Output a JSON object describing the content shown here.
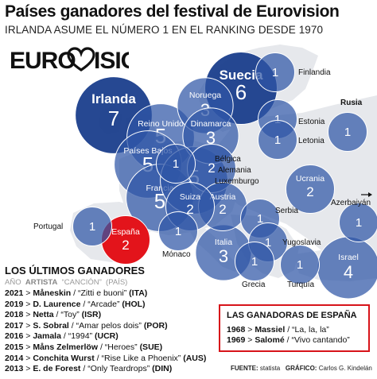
{
  "header": {
    "title": "Países ganadores del festival de Eurovision",
    "subtitle": "IRLANDA ASUME EL NÚMERO 1 EN EL RANKING DESDE 1970"
  },
  "logo": {
    "icon": "eurovision-logo-heart-icon",
    "text": "EUROVISION"
  },
  "chart_data": {
    "type": "bubble-map",
    "measure": "wins",
    "points": [
      {
        "country": "Irlanda",
        "wins": 7,
        "label_inside": true
      },
      {
        "country": "Suecia",
        "wins": 6,
        "label_inside": true
      },
      {
        "country": "Reino Unido",
        "wins": 5,
        "label_inside": true
      },
      {
        "country": "Países Bajos",
        "wins": 5,
        "label_inside": true
      },
      {
        "country": "Francia",
        "wins": 5,
        "label_inside": true
      },
      {
        "country": "Luxemburgo",
        "wins": 5,
        "label_inside": false
      },
      {
        "country": "Noruega",
        "wins": 3,
        "label_inside": true
      },
      {
        "country": "Dinamarca",
        "wins": 3,
        "label_inside": true
      },
      {
        "country": "Italia",
        "wins": 3,
        "label_inside": true
      },
      {
        "country": "Israel",
        "wins": 4,
        "label_inside": true
      },
      {
        "country": "Bélgica",
        "wins": 1,
        "label_inside": false
      },
      {
        "country": "Alemania",
        "wins": 2,
        "label_inside": false
      },
      {
        "country": "Austria",
        "wins": 2,
        "label_inside": true
      },
      {
        "country": "Suiza",
        "wins": 2,
        "label_inside": true
      },
      {
        "country": "Ucrania",
        "wins": 2,
        "label_inside": true
      },
      {
        "country": "España",
        "wins": 2,
        "label_inside": true,
        "highlight": true
      },
      {
        "country": "Finlandia",
        "wins": 1,
        "label_inside": false
      },
      {
        "country": "Rusia",
        "wins": 1,
        "label_inside": false
      },
      {
        "country": "Estonia",
        "wins": 1,
        "label_inside": false
      },
      {
        "country": "Letonia",
        "wins": 1,
        "label_inside": false
      },
      {
        "country": "Portugal",
        "wins": 1,
        "label_inside": false
      },
      {
        "country": "Mónaco",
        "wins": 1,
        "label_inside": false
      },
      {
        "country": "Serbia",
        "wins": 1,
        "label_inside": false
      },
      {
        "country": "Yugoslavia",
        "wins": 1,
        "label_inside": false
      },
      {
        "country": "Azerbaiyán",
        "wins": 1,
        "label_inside": false
      },
      {
        "country": "Grecia",
        "wins": 1,
        "label_inside": false
      },
      {
        "country": "Turquía",
        "wins": 1,
        "label_inside": false
      }
    ],
    "colors": {
      "bubble": "#2f56a6",
      "bubble_dark": "#1a3e8c",
      "highlight": "#e3141b",
      "land": "#e6e8ec",
      "sea": "#ffffff"
    }
  },
  "last_winners": {
    "title": "LOS ÚLTIMOS GANADORES",
    "columns": {
      "year": "AÑO",
      "artist": "ARTISTA",
      "song": "“CANCIÓN”",
      "country": "(PAÍS)"
    },
    "rows": [
      {
        "year": "2021",
        "artist": "Måneskin",
        "song": "“Zitti e buoni”",
        "country": "(ITA)"
      },
      {
        "year": "2019",
        "artist": "D. Laurence",
        "song": "“Arcade”",
        "country": "(HOL)"
      },
      {
        "year": "2018",
        "artist": "Netta",
        "song": "“Toy”",
        "country": "(ISR)"
      },
      {
        "year": "2017",
        "artist": "S. Sobral",
        "song": "“Amar pelos dois”",
        "country": "(POR)"
      },
      {
        "year": "2016",
        "artist": "Jamala",
        "song": "“1994”",
        "country": "(UCR)"
      },
      {
        "year": "2015",
        "artist": "Måns Zelmerlöw",
        "song": "“Heroes”",
        "country": "(SUE)"
      },
      {
        "year": "2014",
        "artist": "Conchita Wurst",
        "song": "“Rise Like a Phoenix”",
        "country": "(AUS)"
      },
      {
        "year": "2013",
        "artist": "E. de Forest",
        "song": "“Only Teardrops”",
        "country": "(DIN)"
      }
    ]
  },
  "spain_winners": {
    "title": "LAS GANADORAS DE ESPAÑA",
    "rows": [
      {
        "year": "1968",
        "artist": "Massiel",
        "song": "“La, la, la”"
      },
      {
        "year": "1969",
        "artist": "Salomé",
        "song": "“Vivo cantando”"
      }
    ]
  },
  "footer": {
    "source_label": "FUENTE:",
    "source": "statista",
    "graphic_label": "GRÁFICO:",
    "graphic": "Carlos G. Kindelán"
  }
}
